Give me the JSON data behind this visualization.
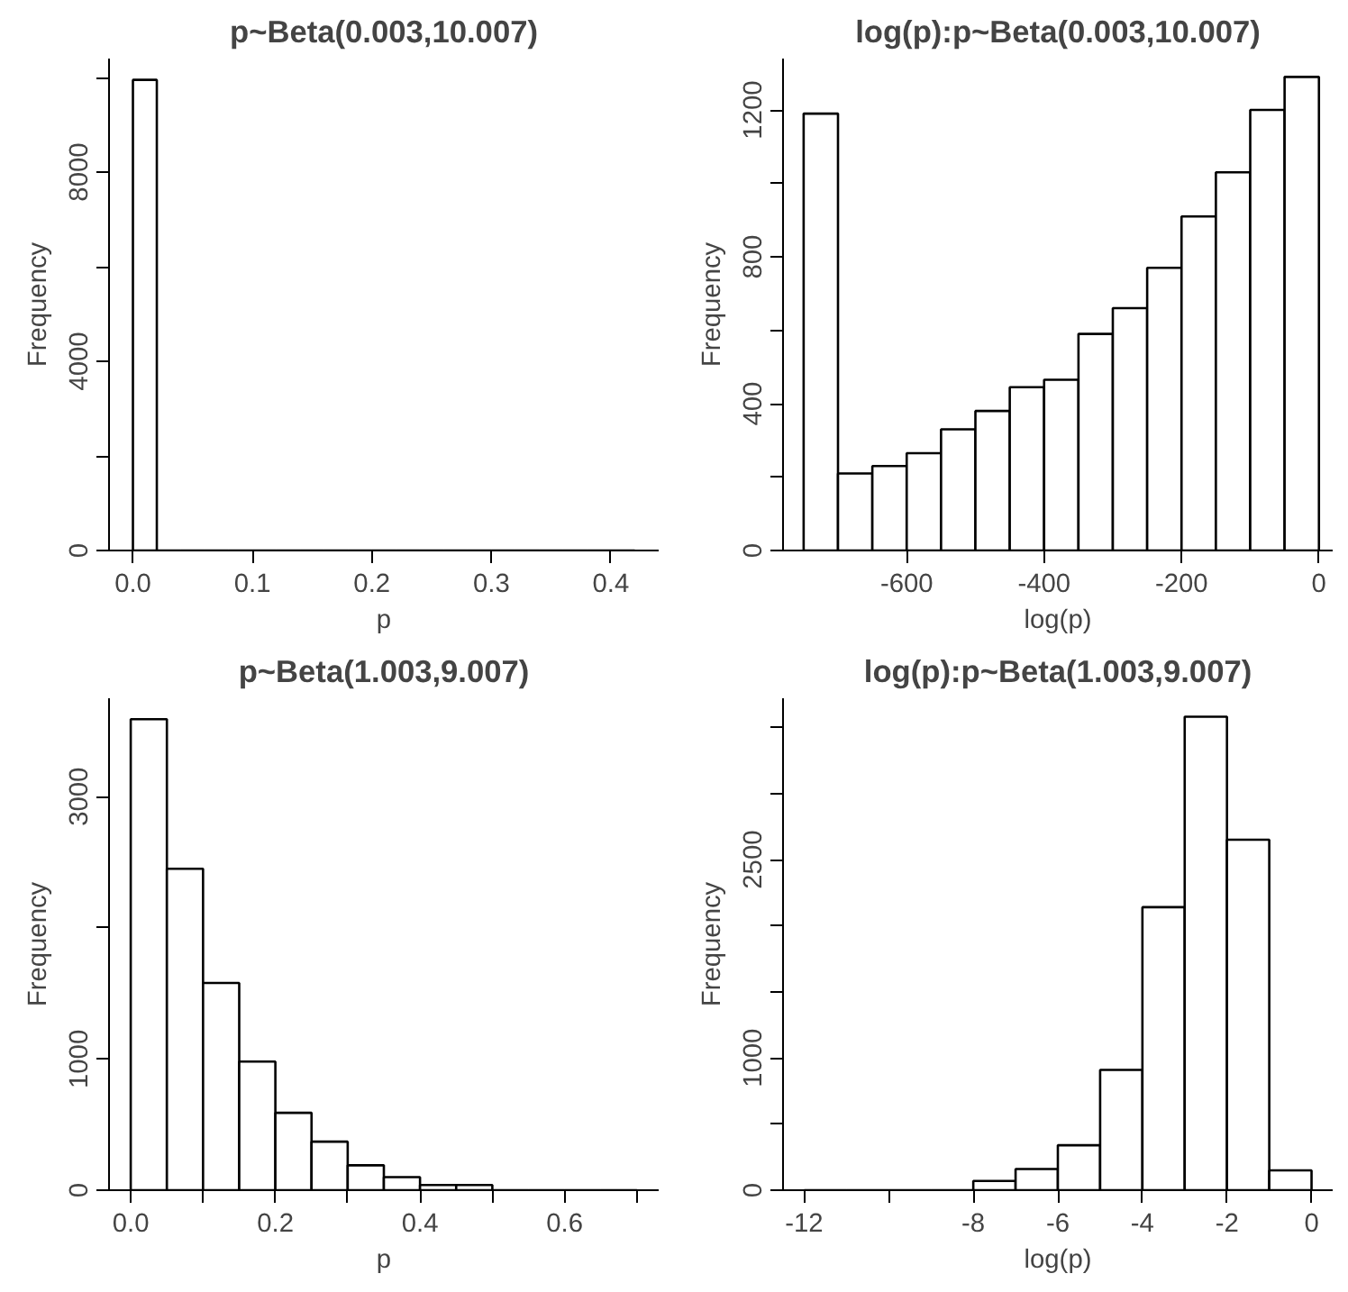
{
  "chart_data": [
    {
      "type": "histogram",
      "title": "p~Beta(0.003,10.007)",
      "xlabel": "p",
      "ylabel": "Frequency",
      "color": "#ffffff",
      "grid": false,
      "bins": [
        0,
        0.02,
        0.04,
        0.06,
        0.08,
        0.1,
        0.12,
        0.14,
        0.16,
        0.18,
        0.2,
        0.22,
        0.24,
        0.26,
        0.28,
        0.3,
        0.32,
        0.34,
        0.36,
        0.38,
        0.4,
        0.42
      ],
      "values": [
        9950,
        0,
        0,
        0,
        0,
        0,
        0,
        0,
        0,
        0,
        0,
        0,
        0,
        0,
        0,
        0,
        0,
        0,
        0,
        0,
        0
      ],
      "xlim": [
        -0.02,
        0.44
      ],
      "ylim": [
        0,
        10400
      ],
      "xticks": [
        {
          "value": 0,
          "label": "0.0"
        },
        0.1,
        0.2,
        0.3,
        0.4
      ],
      "yticks": [
        0,
        {
          "value": 2000,
          "label": null
        },
        4000,
        {
          "value": 6000,
          "label": null
        },
        8000,
        {
          "value": 10000,
          "label": null
        }
      ]
    },
    {
      "type": "histogram",
      "title": "log(p):p~Beta(0.003,10.007)",
      "xlabel": "log(p)",
      "ylabel": "Frequency",
      "color": "#ffffff",
      "grid": false,
      "bins": [
        -750,
        -700,
        -650,
        -600,
        -550,
        -500,
        -450,
        -400,
        -350,
        -300,
        -250,
        -200,
        -150,
        -100,
        -50,
        0
      ],
      "values": [
        1190,
        210,
        230,
        265,
        330,
        380,
        445,
        465,
        590,
        660,
        770,
        910,
        1030,
        1200,
        1290
      ],
      "xlim": [
        -780,
        20
      ],
      "ylim": [
        0,
        1340
      ],
      "xticks": [
        -600,
        -400,
        -200,
        0
      ],
      "yticks": [
        0,
        {
          "value": 200,
          "label": null
        },
        400,
        {
          "value": 600,
          "label": null
        },
        800,
        {
          "value": 1000,
          "label": null
        },
        1200
      ]
    },
    {
      "type": "histogram",
      "title": "p~Beta(1.003,9.007)",
      "xlabel": "p",
      "ylabel": "Frequency",
      "color": "#ffffff",
      "grid": false,
      "bins": [
        0,
        0.05,
        0.1,
        0.15,
        0.2,
        0.25,
        0.3,
        0.35,
        0.4,
        0.45,
        0.5,
        0.55,
        0.6,
        0.65,
        0.7
      ],
      "values": [
        3590,
        2450,
        1580,
        980,
        590,
        370,
        190,
        100,
        40,
        40,
        0,
        0,
        0,
        0
      ],
      "xlim": [
        -0.03,
        0.73
      ],
      "ylim": [
        0,
        3750
      ],
      "xticks": [
        {
          "value": 0,
          "label": "0.0"
        },
        {
          "value": 0.1,
          "label": null
        },
        0.2,
        {
          "value": 0.3,
          "label": null
        },
        0.4,
        {
          "value": 0.5,
          "label": null
        },
        0.6,
        {
          "value": 0.7,
          "label": null
        }
      ],
      "yticks": [
        0,
        1000,
        {
          "value": 2000,
          "label": null
        },
        3000
      ]
    },
    {
      "type": "histogram",
      "title": "log(p):p~Beta(1.003,9.007)",
      "xlabel": "log(p)",
      "ylabel": "Frequency",
      "color": "#ffffff",
      "grid": false,
      "bins": [
        -12,
        -11,
        -10,
        -9,
        -8,
        -7,
        -6,
        -5,
        -4,
        -3,
        -2,
        -1,
        0
      ],
      "values": [
        0,
        0,
        0,
        0,
        70,
        160,
        340,
        910,
        2140,
        3580,
        2650,
        150
      ],
      "xlim": [
        -12.5,
        0.5
      ],
      "ylim": [
        0,
        3720
      ],
      "xticks": [
        -12,
        {
          "value": -10,
          "label": null
        },
        -8,
        -6,
        -4,
        -2,
        0
      ],
      "yticks": [
        0,
        {
          "value": 500,
          "label": null
        },
        1000,
        {
          "value": 1500,
          "label": null
        },
        {
          "value": 2000,
          "label": null
        },
        2500,
        {
          "value": 3000,
          "label": null
        },
        {
          "value": 3500,
          "label": null
        }
      ]
    }
  ]
}
